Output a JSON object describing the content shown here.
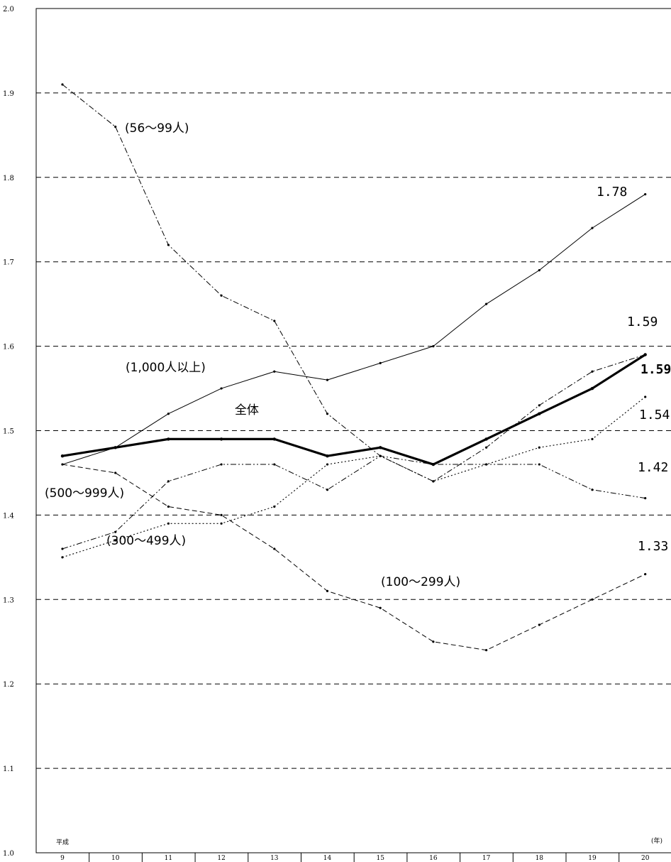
{
  "chart_data": {
    "type": "line",
    "x_first_prefix": "平成",
    "x_unit": "(年)",
    "categories": [
      "9",
      "10",
      "11",
      "12",
      "13",
      "14",
      "15",
      "16",
      "17",
      "18",
      "19",
      "20"
    ],
    "ylim": [
      1.0,
      2.0
    ],
    "yticks": [
      "1.0",
      "1.1",
      "1.2",
      "1.3",
      "1.4",
      "1.5",
      "1.6",
      "1.7",
      "1.8",
      "1.9",
      "2.0"
    ],
    "grid": "horizontal dashed",
    "series": [
      {
        "name": "全体",
        "style": "solid-bold",
        "values": [
          1.47,
          1.48,
          1.49,
          1.49,
          1.49,
          1.47,
          1.48,
          1.46,
          1.49,
          1.52,
          1.55,
          1.59
        ]
      },
      {
        "name": "(1,000人以上)",
        "style": "solid-thin",
        "values": [
          1.46,
          1.48,
          1.52,
          1.55,
          1.57,
          1.56,
          1.58,
          1.6,
          1.65,
          1.69,
          1.74,
          1.78
        ]
      },
      {
        "name": "(500～999人)",
        "style": "dash-dot-dot",
        "values": [
          1.36,
          1.38,
          1.44,
          1.46,
          1.46,
          1.43,
          1.47,
          1.46,
          1.46,
          1.46,
          1.43,
          1.42
        ]
      },
      {
        "name": "(300～499人)",
        "style": "dotted",
        "values": [
          1.35,
          1.37,
          1.39,
          1.39,
          1.41,
          1.46,
          1.47,
          1.44,
          1.46,
          1.48,
          1.49,
          1.54
        ]
      },
      {
        "name": "(100～299人)",
        "style": "dashed",
        "values": [
          1.46,
          1.45,
          1.41,
          1.4,
          1.36,
          1.31,
          1.29,
          1.25,
          1.24,
          1.27,
          1.3,
          1.33
        ]
      },
      {
        "name": "(56～99人)",
        "style": "dash-dot",
        "values": [
          1.91,
          1.86,
          1.72,
          1.66,
          1.63,
          1.52,
          1.47,
          1.44,
          1.48,
          1.53,
          1.57,
          1.59
        ]
      }
    ],
    "end_labels": [
      "1.78",
      "1.59",
      "1.59",
      "1.54",
      "1.42",
      "1.33"
    ]
  }
}
